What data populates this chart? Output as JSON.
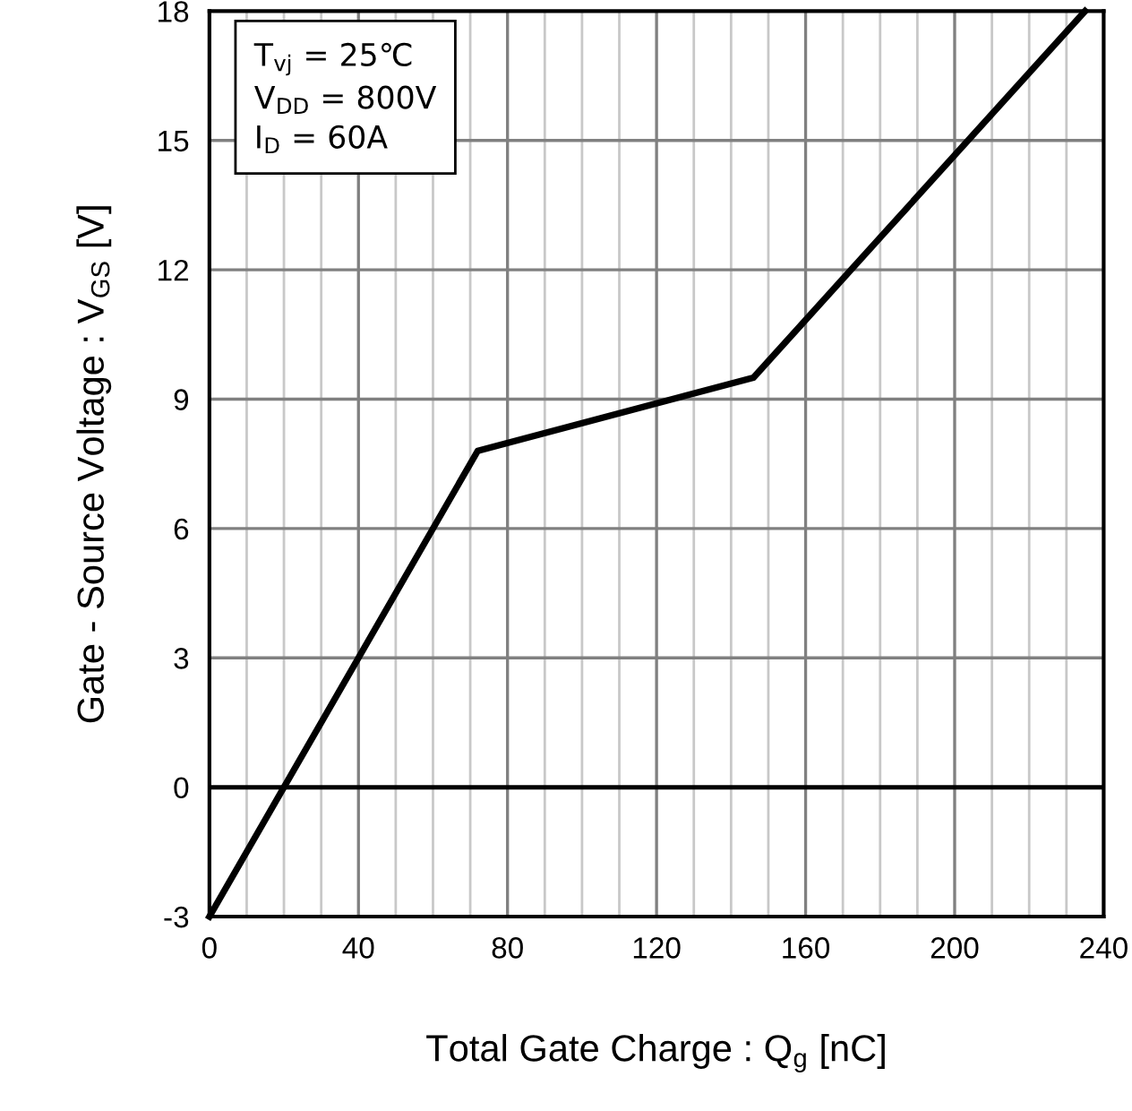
{
  "chart_data": {
    "type": "line",
    "xlabel": "Total Gate Charge : Q$_{g}$ [nC]",
    "ylabel": "Gate - Source Voltage : V$_{GS}$ [V]",
    "annotations": [
      "T$_{vj}$ = 25℃\nV$_{DD}$ = 800V\nI$_{D}$ = 60A"
    ],
    "series": [
      {
        "color": "#000000",
        "x": [
          0,
          72,
          146,
          235
        ],
        "values": [
          -3,
          7.8,
          9.5,
          18
        ]
      }
    ],
    "xlim": [
      0,
      240
    ],
    "xticks": [
      0,
      {
        "value": 10,
        "label": null
      },
      {
        "value": 20,
        "label": null
      },
      {
        "value": 30,
        "label": null
      },
      40,
      {
        "value": 50,
        "label": null
      },
      {
        "value": 60,
        "label": null
      },
      {
        "value": 70,
        "label": null
      },
      80,
      {
        "value": 90,
        "label": null
      },
      {
        "value": 100,
        "label": null
      },
      {
        "value": 110,
        "label": null
      },
      120,
      {
        "value": 130,
        "label": null
      },
      {
        "value": 140,
        "label": null
      },
      {
        "value": 150,
        "label": null
      },
      160,
      {
        "value": 170,
        "label": null
      },
      {
        "value": 180,
        "label": null
      },
      {
        "value": 190,
        "label": null
      },
      200,
      {
        "value": 210,
        "label": null
      },
      {
        "value": 220,
        "label": null
      },
      {
        "value": 230,
        "label": null
      },
      240
    ],
    "ylim": [
      -3,
      18
    ],
    "yticks": [
      -3,
      0,
      3,
      6,
      9,
      12,
      15,
      18
    ],
    "ref_lines": [
      {
        "axis": "y",
        "value": 0,
        "color": "#000000"
      }
    ],
    "grid": true,
    "legend": false,
    "marker": "none",
    "line_style": "solid"
  }
}
